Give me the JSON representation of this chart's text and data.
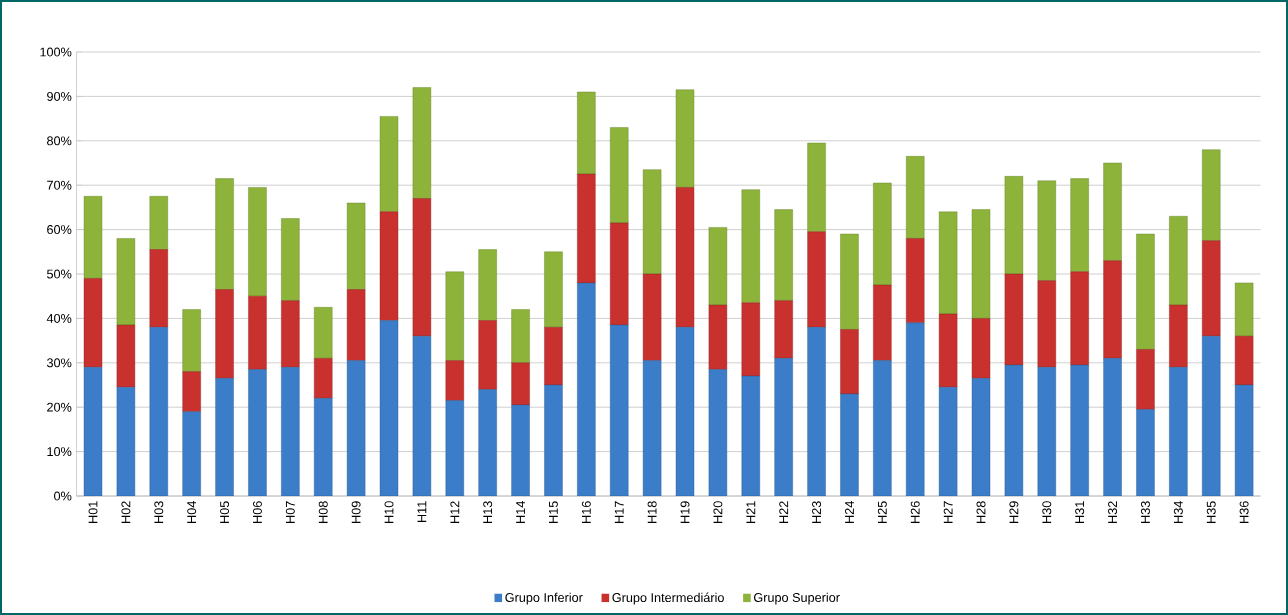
{
  "chart_data": {
    "type": "bar",
    "stacked": true,
    "categories": [
      "H01",
      "H02",
      "H03",
      "H04",
      "H05",
      "H06",
      "H07",
      "H08",
      "H09",
      "H10",
      "H11",
      "H12",
      "H13",
      "H14",
      "H15",
      "H16",
      "H17",
      "H18",
      "H19",
      "H20",
      "H21",
      "H22",
      "H23",
      "H24",
      "H25",
      "H26",
      "H27",
      "H28",
      "H29",
      "H30",
      "H31",
      "H32",
      "H33",
      "H34",
      "H35",
      "H36"
    ],
    "series": [
      {
        "name": "Grupo Inferior",
        "color": "#3b7dc8",
        "values": [
          29,
          24.5,
          38,
          19,
          26.5,
          28.5,
          29,
          22,
          30.5,
          39.5,
          36,
          21.5,
          24,
          20.5,
          25,
          48,
          38.5,
          30.5,
          38,
          28.5,
          27,
          31,
          38,
          23,
          30.5,
          39,
          24.5,
          26.5,
          29.5,
          29,
          29.5,
          31,
          19.5,
          29,
          36,
          25
        ]
      },
      {
        "name": "Grupo Intermediário",
        "color": "#c8312d",
        "values": [
          20,
          14,
          17.5,
          9,
          20,
          16.5,
          15,
          9,
          16,
          24.5,
          31,
          9,
          15.5,
          9.5,
          13,
          24.5,
          23,
          19.5,
          31.5,
          14.5,
          16.5,
          13,
          21.5,
          14.5,
          17,
          19,
          16.5,
          13.5,
          20.5,
          19.5,
          21,
          22,
          13.5,
          14,
          21.5,
          11
        ]
      },
      {
        "name": "Grupo Superior",
        "color": "#8db33a",
        "values": [
          18.5,
          19.5,
          12,
          14,
          25,
          24.5,
          18.5,
          11.5,
          19.5,
          21.5,
          25,
          20,
          16,
          12,
          17,
          18.5,
          21.5,
          23.5,
          22,
          17.5,
          25.5,
          20.5,
          20,
          21.5,
          23,
          18.5,
          23,
          24.5,
          22,
          22.5,
          21,
          22,
          26,
          20,
          20.5,
          12
        ]
      }
    ],
    "ylim": [
      0,
      100
    ],
    "yticks": [
      {
        "value": 0,
        "label": "0%"
      },
      {
        "value": 10,
        "label": "10%"
      },
      {
        "value": 20,
        "label": "20%"
      },
      {
        "value": 30,
        "label": "30%"
      },
      {
        "value": 40,
        "label": "40%"
      },
      {
        "value": 50,
        "label": "50%"
      },
      {
        "value": 60,
        "label": "60%"
      },
      {
        "value": 70,
        "label": "70%"
      },
      {
        "value": 80,
        "label": "80%"
      },
      {
        "value": 90,
        "label": "90%"
      },
      {
        "value": 100,
        "label": "100%"
      }
    ],
    "grid": "y",
    "legend": "bottom"
  }
}
